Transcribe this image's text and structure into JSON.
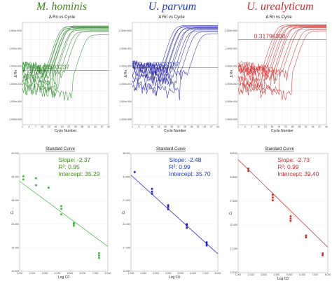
{
  "chart_data": [
    {
      "id": "amp-mh",
      "type": "line",
      "title": "M. hominis",
      "subtitle": "Δ Rn vs Cycle",
      "xlabel": "Cycle Number",
      "ylabel": "Δ Rn",
      "yscale": "log",
      "ylim": [
        5e-06,
        3
      ],
      "xlim": [
        1,
        40
      ],
      "threshold": 0.00593237,
      "threshold_label": "0.00593237",
      "color": "#2e8b2e",
      "annotation_color": "#3a8a1a",
      "grid": true,
      "series": [
        {
          "ct": 14,
          "plateau": 1.8
        },
        {
          "ct": 14.5,
          "plateau": 1.5
        },
        {
          "ct": 15,
          "plateau": 1.9
        },
        {
          "ct": 15.5,
          "plateau": 1.2
        },
        {
          "ct": 16,
          "plateau": 1.6
        },
        {
          "ct": 16.5,
          "plateau": 1.4
        },
        {
          "ct": 17,
          "plateau": 1.7
        },
        {
          "ct": 18,
          "plateau": 1.1
        },
        {
          "ct": 19,
          "plateau": 1.5
        },
        {
          "ct": 20,
          "plateau": 0.9
        },
        {
          "ct": 22,
          "plateau": 1.0
        },
        {
          "ct": 26,
          "plateau": 0.6
        }
      ]
    },
    {
      "id": "amp-up",
      "type": "line",
      "title": "U. parvum",
      "subtitle": "Δ Rn vs Cycle",
      "xlabel": "Cycle Number",
      "ylabel": "Δ Rn",
      "yscale": "log",
      "ylim": [
        5e-06,
        3
      ],
      "xlim": [
        1,
        40
      ],
      "threshold": 0.00830187,
      "threshold_label": "0.00830187",
      "color": "#2222aa",
      "annotation_color": "#1a3ac8",
      "grid": true,
      "series": [
        {
          "ct": 16,
          "plateau": 2.0
        },
        {
          "ct": 17,
          "plateau": 1.7
        },
        {
          "ct": 17.5,
          "plateau": 1.9
        },
        {
          "ct": 18.5,
          "plateau": 1.4
        },
        {
          "ct": 19,
          "plateau": 1.6
        },
        {
          "ct": 20,
          "plateau": 1.2
        },
        {
          "ct": 21,
          "plateau": 1.5
        },
        {
          "ct": 22,
          "plateau": 1.0
        },
        {
          "ct": 23.5,
          "plateau": 1.3
        },
        {
          "ct": 25,
          "plateau": 0.9
        },
        {
          "ct": 28,
          "plateau": 0.7
        }
      ]
    },
    {
      "id": "amp-uu",
      "type": "line",
      "title": "U. urealyticum",
      "subtitle": "Δ Rn vs Cycle",
      "xlabel": "Cycle Number",
      "ylabel": "Δ Rn",
      "yscale": "log",
      "ylim": [
        5e-06,
        3
      ],
      "xlim": [
        1,
        40
      ],
      "threshold": 0.317963,
      "threshold_label": "0.31796300",
      "color": "#d42a2a",
      "annotation_color": "#d42a2a",
      "grid": true,
      "series": [
        {
          "ct": 14,
          "plateau": 2.2
        },
        {
          "ct": 15,
          "plateau": 1.9
        },
        {
          "ct": 16,
          "plateau": 2.1
        },
        {
          "ct": 17,
          "plateau": 1.7
        },
        {
          "ct": 18,
          "plateau": 2.0
        },
        {
          "ct": 19,
          "plateau": 1.5
        },
        {
          "ct": 20,
          "plateau": 1.8
        },
        {
          "ct": 21.5,
          "plateau": 1.3
        },
        {
          "ct": 23,
          "plateau": 1.6
        },
        {
          "ct": 25,
          "plateau": 1.2
        },
        {
          "ct": 27,
          "plateau": 1.0
        }
      ]
    },
    {
      "id": "std-mh",
      "type": "scatter",
      "title": "Standard Curve",
      "xlabel": "Log C0",
      "ylabel": "Cₜ",
      "xlim": [
        1,
        8
      ],
      "ylim": [
        10,
        40
      ],
      "color": "#3ab53a",
      "annotation_color": "#3a8a1a",
      "stats": {
        "slope": "Slope: -2.37",
        "r2": "R²: 0.95",
        "intercept": "Intercept: 35.29"
      },
      "fit": {
        "slope": -2.37,
        "intercept": 35.29
      },
      "x": [
        1.3,
        1.3,
        2.3,
        2.3,
        3.3,
        4.3,
        4.3,
        4.3,
        5.3,
        5.3,
        5.3,
        7.3,
        7.3,
        7.3
      ],
      "y": [
        34.2,
        33.4,
        33.7,
        31.9,
        31.3,
        26.6,
        25.9,
        24.5,
        22.3,
        22.1,
        21.6,
        14.6,
        14.0,
        13.4
      ]
    },
    {
      "id": "std-up",
      "type": "scatter",
      "title": "Standard Curve",
      "xlabel": "Log C0",
      "ylabel": "Cₜ",
      "xlim": [
        1,
        8
      ],
      "ylim": [
        12,
        38
      ],
      "color": "#1a1acc",
      "annotation_color": "#1a3ac8",
      "stats": {
        "slope": "Slope: -2.48",
        "r2": "R²: 0.99",
        "intercept": "Intercept: 35.70"
      },
      "fit": {
        "slope": -2.48,
        "intercept": 35.7
      },
      "x": [
        1.3,
        2.7,
        2.7,
        2.7,
        4.0,
        4.0,
        4.0,
        5.5,
        5.5,
        5.5,
        7.1,
        7.1,
        7.1
      ],
      "y": [
        33.9,
        30.2,
        29.6,
        29.1,
        26.6,
        26.2,
        25.7,
        22.4,
        22.1,
        21.6,
        18.4,
        18.1,
        17.7
      ]
    },
    {
      "id": "std-uu",
      "type": "scatter",
      "title": "Standard Curve",
      "xlabel": "Log C0",
      "ylabel": "Cₜ",
      "xlim": [
        1,
        8
      ],
      "ylim": [
        12,
        38
      ],
      "color": "#cc2222",
      "annotation_color": "#d42a2a",
      "stats": {
        "slope": "Slope: -2.73",
        "r2": "R²: 0.99",
        "intercept": "Intercept: 39.40"
      },
      "fit": {
        "slope": -2.73,
        "intercept": 39.4
      },
      "x": [
        1.8,
        1.8,
        3.7,
        3.7,
        3.7,
        5.1,
        5.1,
        5.1,
        6.3,
        6.3,
        7.6,
        7.6
      ],
      "y": [
        34.7,
        34.2,
        29.0,
        28.4,
        27.8,
        24.3,
        23.8,
        23.3,
        20.1,
        19.7,
        16.2,
        15.8
      ]
    }
  ]
}
